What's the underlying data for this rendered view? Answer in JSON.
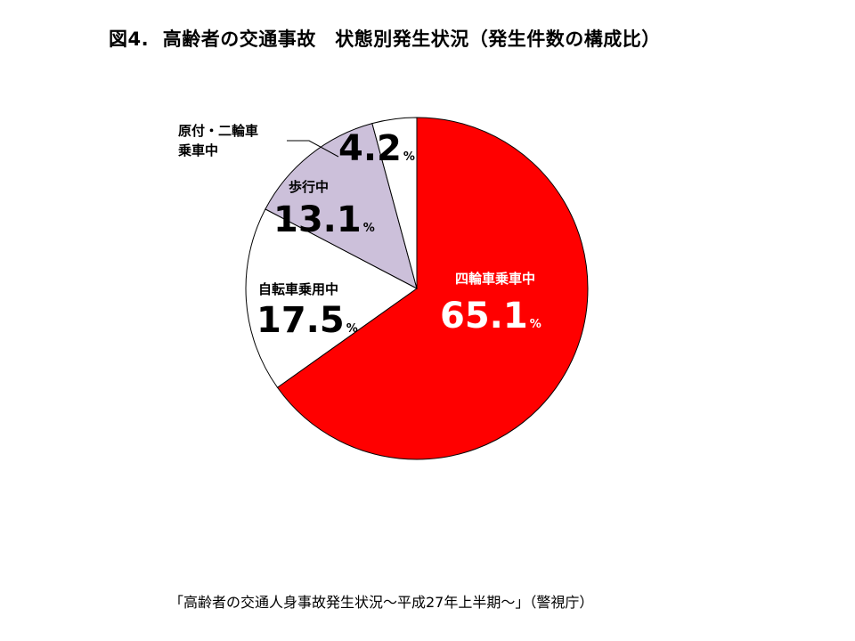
{
  "title": "図4.  高齢者の交通事故　状態別発生状況（発生件数の構成比）",
  "source": "「高齢者の交通人身事故発生状況～平成27年上半期～」（警視庁）",
  "chart_data": {
    "type": "pie",
    "start_angle_deg": 0,
    "direction": "clockwise",
    "unit": "%",
    "slices": [
      {
        "label": "四輪車乗車中",
        "value": 65.1,
        "value_text": "65.1",
        "color": "#ff0000"
      },
      {
        "label": "自転車乗用中",
        "value": 17.5,
        "value_text": "17.5",
        "color": "#ffffff"
      },
      {
        "label": "歩行中",
        "value": 13.1,
        "value_text": "13.1",
        "color": "#ccc0da"
      },
      {
        "label_lines": [
          "原付・二輪車",
          "乗車中"
        ],
        "value": 4.2,
        "value_text": "4.2",
        "color": "#ffffff"
      }
    ]
  }
}
